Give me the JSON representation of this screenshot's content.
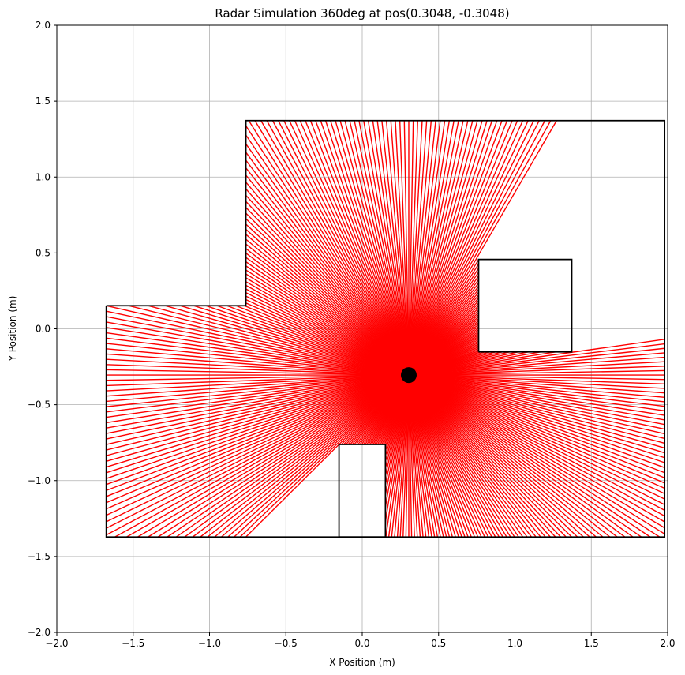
{
  "chart_data": {
    "type": "line",
    "title": "Radar Simulation 360deg at pos(0.3048, -0.3048)",
    "xlabel": "X Position (m)",
    "ylabel": "Y Position (m)",
    "xlim": [
      -2.0,
      2.0
    ],
    "ylim": [
      -2.0,
      2.0
    ],
    "xticks": [
      -2.0,
      -1.5,
      -1.0,
      -0.5,
      0.0,
      0.5,
      1.0,
      1.5,
      2.0
    ],
    "yticks": [
      -2.0,
      -1.5,
      -1.0,
      -0.5,
      0.0,
      0.5,
      1.0,
      1.5,
      2.0
    ],
    "xtick_labels": [
      "−2.0",
      "−1.5",
      "−1.0",
      "−0.5",
      "0.0",
      "0.5",
      "1.0",
      "1.5",
      "2.0"
    ],
    "ytick_labels": [
      "−2.0",
      "−1.5",
      "−1.0",
      "−0.5",
      "0.0",
      "0.5",
      "1.0",
      "1.5",
      "2.0"
    ],
    "grid": true,
    "radar_position": [
      0.3048,
      -0.3048
    ],
    "ray_count": 360,
    "ray_color": "#ff0000",
    "wall_color": "#000000",
    "marker_color": "#000000",
    "outer_boundary": [
      [
        -1.676,
        0.152
      ],
      [
        -0.762,
        0.152
      ],
      [
        -0.762,
        1.372
      ],
      [
        1.98,
        1.372
      ],
      [
        1.98,
        -1.372
      ],
      [
        -1.676,
        -1.372
      ],
      [
        -1.676,
        0.152
      ]
    ],
    "obstacles": [
      [
        [
          0.762,
          -0.152
        ],
        [
          1.372,
          -0.152
        ],
        [
          1.372,
          0.457
        ],
        [
          0.762,
          0.457
        ],
        [
          0.762,
          -0.152
        ]
      ],
      [
        [
          -0.152,
          -0.762
        ],
        [
          0.152,
          -0.762
        ],
        [
          0.152,
          -1.372
        ],
        [
          -0.152,
          -1.372
        ],
        [
          -0.152,
          -0.762
        ]
      ]
    ]
  }
}
